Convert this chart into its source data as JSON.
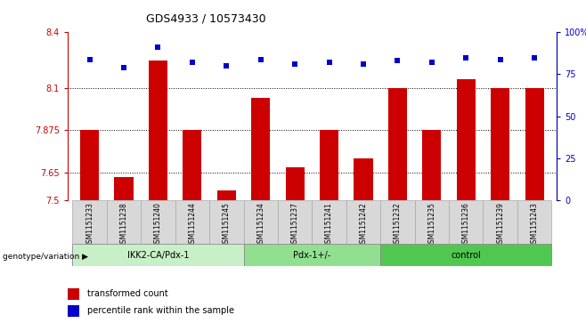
{
  "title": "GDS4933 / 10573430",
  "samples": [
    "GSM1151233",
    "GSM1151238",
    "GSM1151240",
    "GSM1151244",
    "GSM1151245",
    "GSM1151234",
    "GSM1151237",
    "GSM1151241",
    "GSM1151242",
    "GSM1151232",
    "GSM1151235",
    "GSM1151236",
    "GSM1151239",
    "GSM1151243"
  ],
  "red_values": [
    7.875,
    7.625,
    8.25,
    7.875,
    7.555,
    8.05,
    7.675,
    7.875,
    7.725,
    8.1,
    7.875,
    8.15,
    8.1,
    8.1
  ],
  "blue_values": [
    84,
    79,
    91,
    82,
    80,
    84,
    81,
    82,
    81,
    83,
    82,
    85,
    84,
    85
  ],
  "groups": [
    {
      "label": "IKK2-CA/Pdx-1",
      "start": 0,
      "end": 5,
      "color": "#c8f0c8"
    },
    {
      "label": "Pdx-1+/-",
      "start": 5,
      "end": 9,
      "color": "#90e090"
    },
    {
      "label": "control",
      "start": 9,
      "end": 14,
      "color": "#50c850"
    }
  ],
  "ylim_left": [
    7.5,
    8.4
  ],
  "ylim_right": [
    0,
    100
  ],
  "yticks_left": [
    7.5,
    7.65,
    7.875,
    8.1,
    8.4
  ],
  "yticks_right": [
    0,
    25,
    50,
    75,
    100
  ],
  "ytick_labels_right": [
    "0",
    "25",
    "50",
    "75",
    "100%"
  ],
  "hlines": [
    8.1,
    7.875,
    7.65
  ],
  "bar_color": "#cc0000",
  "dot_color": "#0000cc",
  "bar_width": 0.55,
  "genotype_label": "genotype/variation",
  "legend_red": "transformed count",
  "legend_blue": "percentile rank within the sample",
  "bg_color": "#ffffff",
  "plot_bg": "#ffffff",
  "xlabel_color": "#cc0000",
  "right_axis_color": "#0000cc",
  "cell_color": "#d8d8d8",
  "cell_edge_color": "#aaaaaa"
}
